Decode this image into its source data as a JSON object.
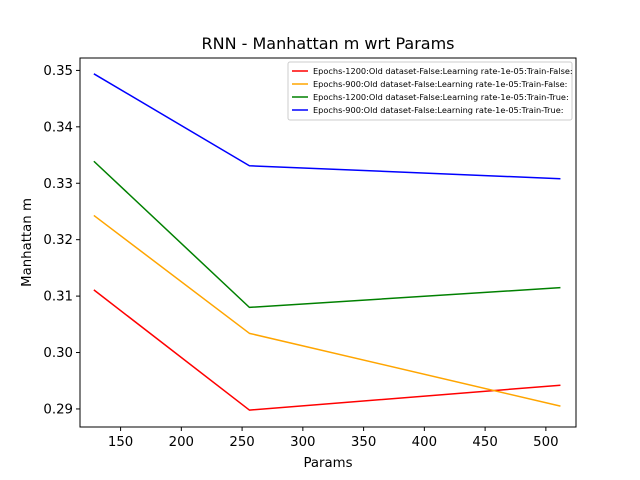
{
  "chart_data": {
    "type": "line",
    "title": "RNN - Manhattan m wrt Params",
    "xlabel": "Params",
    "ylabel": "Manhattan m",
    "xlim": [
      116.6,
      524.8
    ],
    "ylim": [
      0.2868,
      0.3522
    ],
    "xticks": [
      150,
      200,
      250,
      300,
      350,
      400,
      450,
      500
    ],
    "yticks": [
      0.29,
      0.3,
      0.31,
      0.32,
      0.33,
      0.34,
      0.35
    ],
    "ytick_labels": [
      "0.29",
      "0.30",
      "0.31",
      "0.32",
      "0.33",
      "0.34",
      "0.35"
    ],
    "x": [
      128,
      256,
      512
    ],
    "grid": false,
    "legend_position": "top-right",
    "series": [
      {
        "name": "Epochs-1200:Old dataset-False:Learning rate-1e-05:Train-False:",
        "color": "#ff0000",
        "values": [
          0.3111,
          0.2898,
          0.2942
        ]
      },
      {
        "name": "Epochs-900:Old dataset-False:Learning rate-1e-05:Train-False:",
        "color": "#ffa500",
        "values": [
          0.3243,
          0.3034,
          0.2905
        ]
      },
      {
        "name": "Epochs-1200:Old dataset-False:Learning rate-1e-05:Train-True:",
        "color": "#008000",
        "values": [
          0.3339,
          0.308,
          0.3115
        ]
      },
      {
        "name": "Epochs-900:Old dataset-False:Learning rate-1e-05:Train-True:",
        "color": "#0000ff",
        "values": [
          0.3494,
          0.3331,
          0.3308
        ]
      }
    ]
  }
}
